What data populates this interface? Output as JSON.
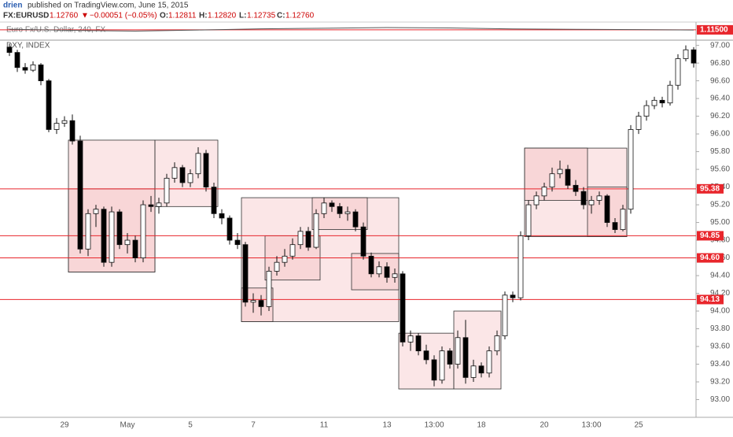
{
  "header": {
    "author": "drien",
    "published": "published on TradingView.com, June 15, 2015",
    "symbol": "FX:EURUSD",
    "price": "1.12760",
    "arrow": "▼",
    "change": "−0.00051 (−0.05%)",
    "o_label": "O:",
    "o": "1.12811",
    "h_label": "H:",
    "h": "1.12820",
    "l_label": "L:",
    "l": "1.12735",
    "c_label": "C:",
    "c": "1.12760"
  },
  "chart_data": [
    {
      "type": "line",
      "title": "Euro Fx/U.S. Dollar, 240, FX",
      "color": "#555555",
      "x": [
        0,
        8,
        16,
        24,
        32,
        40,
        48,
        56,
        64,
        72,
        80,
        87
      ],
      "values": [
        1.118,
        1.112,
        1.108,
        1.114,
        1.121,
        1.124,
        1.128,
        1.126,
        1.12,
        1.118,
        1.116,
        1.114
      ],
      "ylim": [
        1.06,
        1.16
      ],
      "level": {
        "value": 1.115,
        "label": "1.11500"
      }
    },
    {
      "type": "candlestick",
      "title": "DXY, INDEX",
      "up_color": "#ffffff",
      "down_color": "#000000",
      "categories": [
        null,
        null,
        null,
        null,
        null,
        null,
        null,
        "29",
        null,
        null,
        null,
        null,
        null,
        null,
        null,
        "May",
        null,
        null,
        null,
        null,
        null,
        null,
        null,
        "5",
        null,
        null,
        null,
        null,
        null,
        null,
        null,
        "7",
        null,
        null,
        null,
        null,
        null,
        null,
        null,
        null,
        "11",
        null,
        null,
        null,
        null,
        null,
        null,
        null,
        "13",
        null,
        null,
        null,
        null,
        null,
        "13:00",
        null,
        null,
        null,
        null,
        null,
        "18",
        null,
        null,
        null,
        null,
        null,
        null,
        null,
        "20",
        null,
        null,
        null,
        null,
        null,
        "13:00",
        null,
        null,
        null,
        null,
        null,
        "25",
        null,
        null,
        null,
        null,
        null,
        null,
        null
      ],
      "candles": [
        [
          96.98,
          97.02,
          96.88,
          96.92
        ],
        [
          96.92,
          96.95,
          96.7,
          96.75
        ],
        [
          96.75,
          96.8,
          96.68,
          96.72
        ],
        [
          96.72,
          96.82,
          96.7,
          96.78
        ],
        [
          96.78,
          96.8,
          96.55,
          96.6
        ],
        [
          96.6,
          96.62,
          96.02,
          96.05
        ],
        [
          96.05,
          96.18,
          96,
          96.12
        ],
        [
          96.12,
          96.2,
          96.08,
          96.15
        ],
        [
          96.15,
          96.22,
          95.88,
          95.92
        ],
        [
          95.92,
          95.98,
          94.65,
          94.7
        ],
        [
          94.7,
          95.15,
          94.62,
          95.1
        ],
        [
          95.1,
          95.2,
          94.95,
          95.15
        ],
        [
          95.15,
          95.18,
          94.5,
          94.55
        ],
        [
          94.55,
          95.18,
          94.5,
          95.12
        ],
        [
          95.12,
          95.15,
          94.7,
          94.75
        ],
        [
          94.75,
          94.88,
          94.65,
          94.8
        ],
        [
          94.8,
          94.85,
          94.55,
          94.6
        ],
        [
          94.6,
          95.25,
          94.55,
          95.2
        ],
        [
          95.2,
          95.3,
          95.12,
          95.18
        ],
        [
          95.18,
          95.28,
          95.1,
          95.22
        ],
        [
          95.22,
          95.55,
          95.18,
          95.5
        ],
        [
          95.5,
          95.68,
          95.45,
          95.62
        ],
        [
          95.62,
          95.65,
          95.4,
          95.45
        ],
        [
          95.45,
          95.6,
          95.4,
          95.55
        ],
        [
          95.55,
          95.85,
          95.5,
          95.78
        ],
        [
          95.78,
          95.82,
          95.35,
          95.4
        ],
        [
          95.4,
          95.45,
          95.05,
          95.1
        ],
        [
          95.1,
          95.15,
          94.98,
          95.05
        ],
        [
          95.05,
          95.08,
          94.75,
          94.8
        ],
        [
          94.8,
          94.88,
          94.7,
          94.75
        ],
        [
          94.75,
          94.78,
          94.05,
          94.1
        ],
        [
          94.1,
          94.2,
          93.98,
          94.12
        ],
        [
          94.12,
          94.18,
          93.95,
          94.05
        ],
        [
          94.05,
          94.5,
          94,
          94.45
        ],
        [
          94.45,
          94.62,
          94.4,
          94.55
        ],
        [
          94.55,
          94.7,
          94.5,
          94.62
        ],
        [
          94.62,
          94.82,
          94.58,
          94.75
        ],
        [
          94.75,
          94.95,
          94.7,
          94.9
        ],
        [
          94.9,
          94.95,
          94.68,
          94.72
        ],
        [
          94.72,
          95.15,
          94.7,
          95.1
        ],
        [
          95.1,
          95.28,
          95.05,
          95.22
        ],
        [
          95.22,
          95.25,
          95.12,
          95.18
        ],
        [
          95.18,
          95.22,
          95.05,
          95.1
        ],
        [
          95.1,
          95.18,
          95.02,
          95.12
        ],
        [
          95.12,
          95.15,
          94.9,
          94.95
        ],
        [
          94.95,
          95,
          94.58,
          94.62
        ],
        [
          94.62,
          94.66,
          94.38,
          94.42
        ],
        [
          94.42,
          94.56,
          94.38,
          94.5
        ],
        [
          94.5,
          94.55,
          94.32,
          94.38
        ],
        [
          94.38,
          94.48,
          94.32,
          94.42
        ],
        [
          94.42,
          94.45,
          93.6,
          93.65
        ],
        [
          93.65,
          93.78,
          93.55,
          93.72
        ],
        [
          93.72,
          93.75,
          93.5,
          93.55
        ],
        [
          93.55,
          93.62,
          93.4,
          93.45
        ],
        [
          93.45,
          93.5,
          93.15,
          93.22
        ],
        [
          93.22,
          93.6,
          93.18,
          93.55
        ],
        [
          93.55,
          93.58,
          93.35,
          93.4
        ],
        [
          93.4,
          93.78,
          93.35,
          93.7
        ],
        [
          93.7,
          93.9,
          93.18,
          93.25
        ],
        [
          93.25,
          93.45,
          93.2,
          93.38
        ],
        [
          93.38,
          93.42,
          93.25,
          93.3
        ],
        [
          93.3,
          93.6,
          93.25,
          93.55
        ],
        [
          93.55,
          93.78,
          93.5,
          93.72
        ],
        [
          93.72,
          94.22,
          93.68,
          94.18
        ],
        [
          94.18,
          94.22,
          94.1,
          94.15
        ],
        [
          94.15,
          94.9,
          94.12,
          94.85
        ],
        [
          94.85,
          95.25,
          94.8,
          95.2
        ],
        [
          95.2,
          95.35,
          95.15,
          95.3
        ],
        [
          95.3,
          95.45,
          95.25,
          95.4
        ],
        [
          95.4,
          95.62,
          95.35,
          95.55
        ],
        [
          95.55,
          95.7,
          95.5,
          95.6
        ],
        [
          95.6,
          95.65,
          95.38,
          95.42
        ],
        [
          95.42,
          95.48,
          95.3,
          95.35
        ],
        [
          95.35,
          95.4,
          95.15,
          95.2
        ],
        [
          95.2,
          95.3,
          95.1,
          95.25
        ],
        [
          95.25,
          95.35,
          95.2,
          95.3
        ],
        [
          95.3,
          95.32,
          94.95,
          95
        ],
        [
          95,
          95.05,
          94.88,
          94.92
        ],
        [
          94.92,
          95.2,
          94.9,
          95.15
        ],
        [
          95.15,
          96.1,
          95.1,
          96.05
        ],
        [
          96.05,
          96.25,
          96,
          96.2
        ],
        [
          96.2,
          96.38,
          96.15,
          96.32
        ],
        [
          96.32,
          96.42,
          96.28,
          96.38
        ],
        [
          96.38,
          96.42,
          96.3,
          96.35
        ],
        [
          96.35,
          96.6,
          96.32,
          96.55
        ],
        [
          96.55,
          96.9,
          96.5,
          96.85
        ],
        [
          96.85,
          97,
          96.82,
          96.95
        ],
        [
          96.95,
          96.98,
          96.75,
          96.8
        ]
      ],
      "boxes": [
        [
          8,
          18,
          94.44,
          95.93
        ],
        [
          8,
          18,
          94.44,
          95.38
        ],
        [
          19,
          26,
          95.18,
          95.93
        ],
        [
          30,
          49,
          93.88,
          95.28
        ],
        [
          30,
          33,
          93.88,
          94.26
        ],
        [
          33,
          39,
          94.35,
          94.85
        ],
        [
          39,
          45,
          94.92,
          95.28
        ],
        [
          44,
          49,
          94.24,
          94.65
        ],
        [
          50,
          56,
          93.12,
          93.75
        ],
        [
          57,
          62,
          93.12,
          94.0
        ],
        [
          66,
          78,
          94.84,
          95.84
        ],
        [
          66,
          73,
          95.25,
          95.84
        ],
        [
          74,
          78,
          94.84,
          95.4
        ]
      ],
      "box_color": "#f4b6b9",
      "levels": [
        95.38,
        94.85,
        {
          "value": 94.6,
          "label": "94.60"
        },
        94.13
      ],
      "level_color": "#e8262c",
      "ylim": [
        92.8,
        97.05
      ],
      "yticks": [
        {
          "value": 93,
          "label": "93.00"
        },
        {
          "value": 93.2,
          "label": "93.20"
        },
        {
          "value": 93.4,
          "label": "93.40"
        },
        {
          "value": 93.6,
          "label": "93.60"
        },
        {
          "value": 93.8,
          "label": "93.80"
        },
        {
          "value": 94,
          "label": "94.00"
        },
        {
          "value": 94.2,
          "label": "94.20"
        },
        {
          "value": 94.4,
          "label": "94.40"
        },
        {
          "value": 94.6,
          "label": "94.60"
        },
        {
          "value": 94.8,
          "label": "94.80"
        },
        {
          "value": 95,
          "label": "95.00"
        },
        {
          "value": 95.2,
          "label": "95.20"
        },
        {
          "value": 95.4,
          "label": "95.40"
        },
        {
          "value": 95.6,
          "label": "95.60"
        },
        {
          "value": 95.8,
          "label": "95.80"
        },
        {
          "value": 96,
          "label": "96.00"
        },
        {
          "value": 96.2,
          "label": "96.20"
        },
        {
          "value": 96.4,
          "label": "96.40"
        },
        {
          "value": 96.6,
          "label": "96.60"
        },
        {
          "value": 96.8,
          "label": "96.80"
        },
        {
          "value": 97,
          "label": "97.00"
        }
      ]
    }
  ]
}
